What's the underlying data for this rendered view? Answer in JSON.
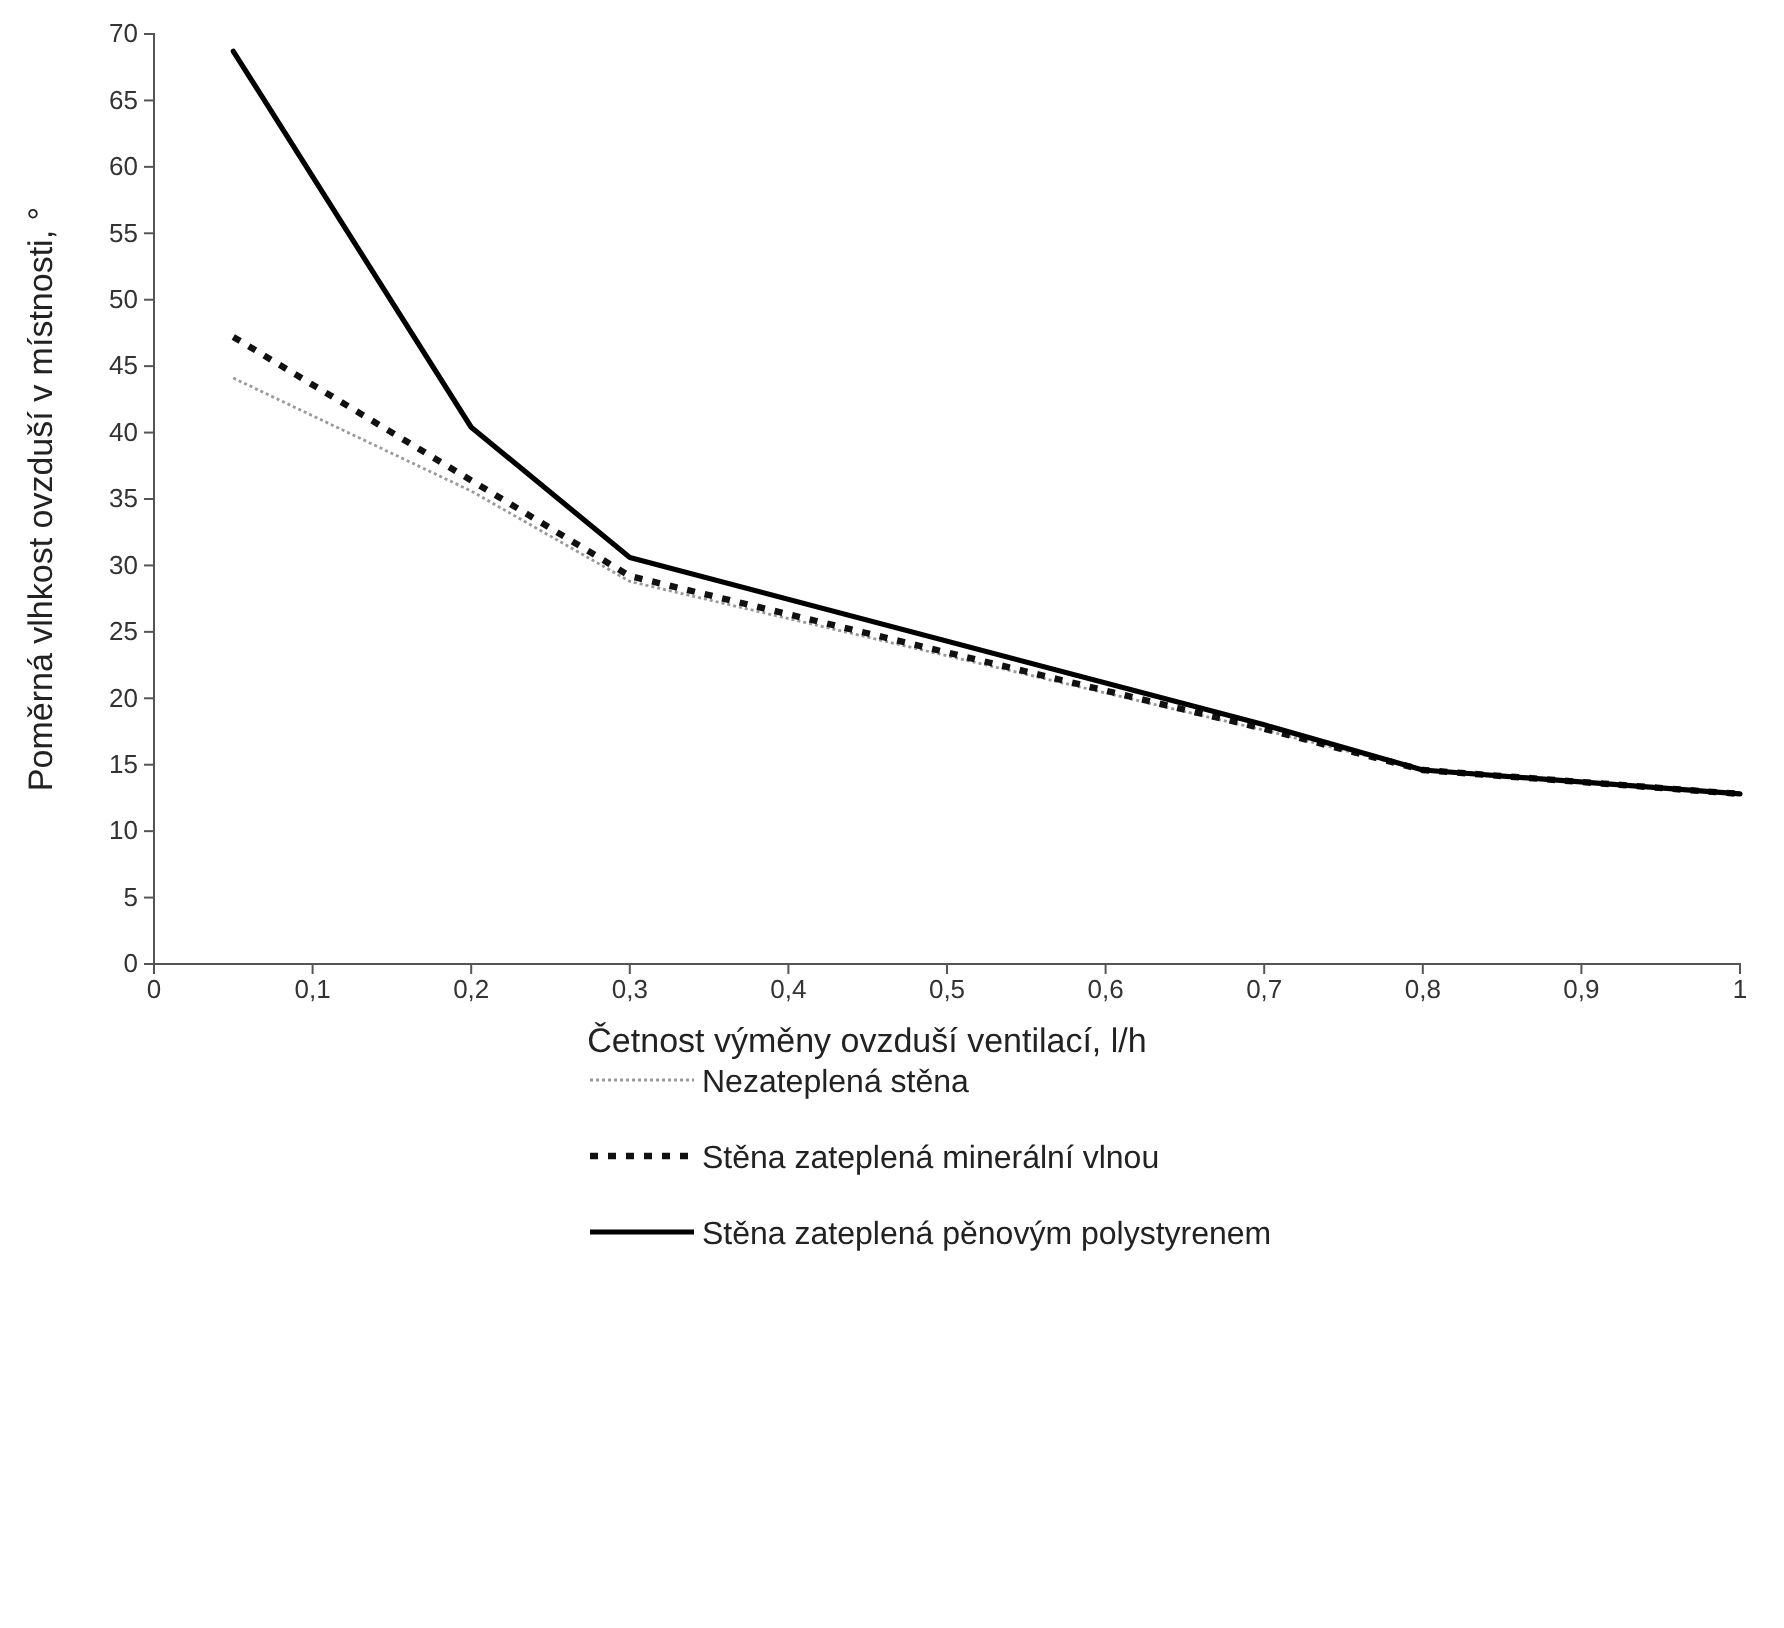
{
  "chart_data": {
    "type": "line",
    "xlabel": "Četnost výměny ovzduší ventilací, l/h",
    "ylabel": "Poměrná vlhkost ovzduší v místnosti, °",
    "x": [
      0.05,
      0.2,
      0.3,
      0.7,
      0.8,
      1.0
    ],
    "series": [
      {
        "name": "Nezateplená stěna",
        "color": "#9a9a9a",
        "line_style": "dotted",
        "values": [
          44.1,
          35.6,
          28.8,
          17.6,
          14.6,
          12.8
        ]
      },
      {
        "name": "Stěna zateplená minerální vlnou",
        "color": "#111111",
        "line_style": "dashed",
        "values": [
          47.2,
          36.4,
          29.2,
          17.7,
          14.6,
          12.8
        ]
      },
      {
        "name": "Stěna zateplená pěnovým polystyrenem",
        "color": "#000000",
        "line_style": "solid",
        "values": [
          68.7,
          40.4,
          30.6,
          18.0,
          14.6,
          12.8
        ]
      }
    ],
    "xlim": [
      0,
      1
    ],
    "xticks": [
      0,
      {
        "value": 0.1,
        "label": "0,1"
      },
      {
        "value": 0.2,
        "label": "0,2"
      },
      {
        "value": 0.3,
        "label": "0,3"
      },
      {
        "value": 0.4,
        "label": "0,4"
      },
      {
        "value": 0.5,
        "label": "0,5"
      },
      {
        "value": 0.6,
        "label": "0,6"
      },
      {
        "value": 0.7,
        "label": "0,7"
      },
      {
        "value": 0.8,
        "label": "0,8"
      },
      {
        "value": 0.9,
        "label": "0,9"
      },
      1
    ],
    "ylim": [
      0,
      70
    ],
    "yticks": [
      0,
      5,
      10,
      15,
      20,
      25,
      30,
      35,
      40,
      45,
      50,
      55,
      60,
      65,
      70
    ],
    "grid": false,
    "legend": "bottom",
    "marker": "none"
  }
}
